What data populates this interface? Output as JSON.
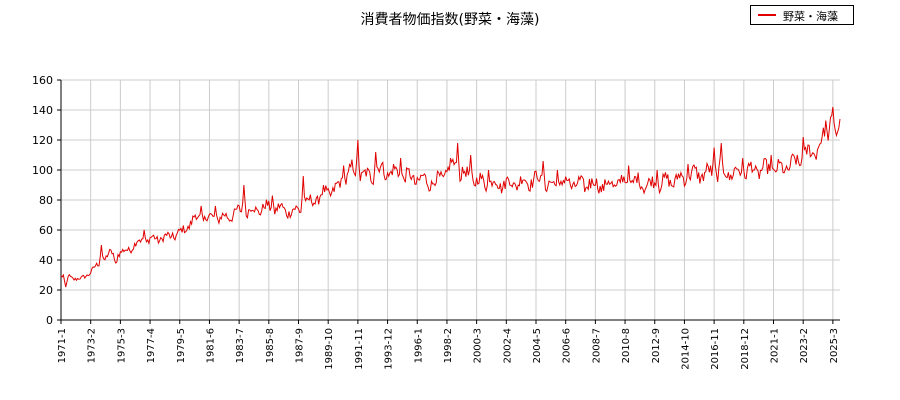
{
  "chart_data": {
    "type": "line",
    "title": "消費者物価指数(野菜・海藻)",
    "xlabel": "",
    "ylabel": "",
    "ylim": [
      0,
      160
    ],
    "yticks": [
      0,
      20,
      40,
      60,
      80,
      100,
      120,
      140,
      160
    ],
    "xticks": [
      "1971-1",
      "1973-2",
      "1975-3",
      "1977-4",
      "1979-5",
      "1981-6",
      "1983-7",
      "1985-8",
      "1987-9",
      "1989-10",
      "1991-11",
      "1993-12",
      "1996-1",
      "1998-2",
      "2000-3",
      "2002-4",
      "2004-5",
      "2006-6",
      "2008-7",
      "2010-8",
      "2012-9",
      "2014-10",
      "2016-11",
      "2018-12",
      "2021-1",
      "2023-2",
      "2025-3"
    ],
    "x_start": "1971-1",
    "x_end": "2025-9",
    "grid": true,
    "legend_position": "top-right",
    "series": [
      {
        "name": "野菜・海藻",
        "color": "#e00000",
        "anchors": [
          [
            "1971-1",
            30
          ],
          [
            "1972-6",
            27
          ],
          [
            "1973-6",
            35
          ],
          [
            "1974-6",
            44
          ],
          [
            "1975-6",
            45
          ],
          [
            "1976-6",
            52
          ],
          [
            "1977-6",
            54
          ],
          [
            "1978-6",
            55
          ],
          [
            "1979-6",
            58
          ],
          [
            "1980-6",
            68
          ],
          [
            "1981-6",
            68
          ],
          [
            "1982-6",
            68
          ],
          [
            "1983-6",
            72
          ],
          [
            "1984-6",
            73
          ],
          [
            "1985-6",
            75
          ],
          [
            "1986-6",
            74
          ],
          [
            "1987-6",
            72
          ],
          [
            "1988-6",
            78
          ],
          [
            "1989-6",
            84
          ],
          [
            "1990-6",
            88
          ],
          [
            "1991-6",
            100
          ],
          [
            "1992-6",
            95
          ],
          [
            "1993-6",
            100
          ],
          [
            "1994-6",
            98
          ],
          [
            "1995-6",
            95
          ],
          [
            "1996-6",
            93
          ],
          [
            "1997-6",
            92
          ],
          [
            "1998-6",
            103
          ],
          [
            "1999-6",
            96
          ],
          [
            "2000-6",
            92
          ],
          [
            "2001-6",
            91
          ],
          [
            "2002-6",
            91
          ],
          [
            "2003-6",
            92
          ],
          [
            "2004-6",
            94
          ],
          [
            "2005-6",
            89
          ],
          [
            "2006-6",
            92
          ],
          [
            "2007-6",
            90
          ],
          [
            "2008-6",
            90
          ],
          [
            "2009-6",
            90
          ],
          [
            "2010-6",
            92
          ],
          [
            "2011-6",
            92
          ],
          [
            "2012-6",
            90
          ],
          [
            "2013-6",
            92
          ],
          [
            "2014-6",
            94
          ],
          [
            "2015-6",
            97
          ],
          [
            "2016-6",
            98
          ],
          [
            "2017-6",
            98
          ],
          [
            "2018-6",
            98
          ],
          [
            "2019-6",
            100
          ],
          [
            "2020-6",
            100
          ],
          [
            "2021-6",
            100
          ],
          [
            "2022-6",
            104
          ],
          [
            "2023-6",
            110
          ],
          [
            "2024-6",
            118
          ],
          [
            "2024-12",
            130
          ],
          [
            "2025-2",
            138
          ],
          [
            "2025-6",
            120
          ],
          [
            "2025-9",
            130
          ]
        ],
        "peaks": [
          [
            "1971-5",
            22
          ],
          [
            "1973-11",
            50
          ],
          [
            "1974-11",
            38
          ],
          [
            "1976-11",
            60
          ],
          [
            "1978-11",
            58
          ],
          [
            "1980-11",
            76
          ],
          [
            "1981-11",
            76
          ],
          [
            "1983-11",
            90
          ],
          [
            "1985-11",
            83
          ],
          [
            "1988-1",
            96
          ],
          [
            "1990-11",
            103
          ],
          [
            "1991-11",
            120
          ],
          [
            "1993-2",
            112
          ],
          [
            "1994-11",
            108
          ],
          [
            "1998-11",
            118
          ],
          [
            "1999-10",
            110
          ],
          [
            "2001-1",
            100
          ],
          [
            "2004-11",
            106
          ],
          [
            "2005-11",
            100
          ],
          [
            "2008-2",
            94
          ],
          [
            "2010-11",
            103
          ],
          [
            "2012-11",
            100
          ],
          [
            "2015-1",
            104
          ],
          [
            "2016-11",
            115
          ],
          [
            "2017-5",
            118
          ],
          [
            "2018-11",
            108
          ],
          [
            "2020-11",
            110
          ],
          [
            "2023-2",
            122
          ],
          [
            "2024-9",
            133
          ],
          [
            "2025-3",
            142
          ]
        ]
      }
    ]
  }
}
